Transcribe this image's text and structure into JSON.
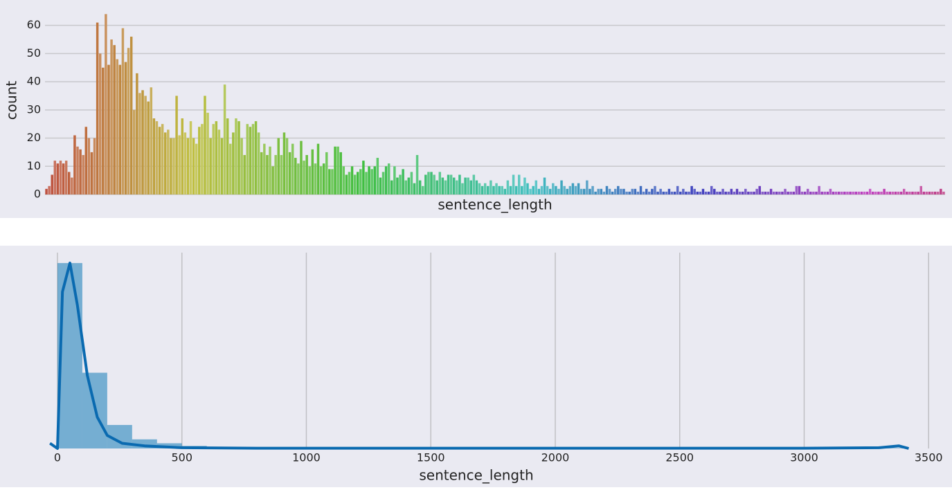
{
  "chart_data": [
    {
      "type": "bar",
      "xlabel": "sentence_length",
      "ylabel": "count",
      "palette": "husl",
      "ylim": [
        0,
        69
      ],
      "yticks": [
        0,
        10,
        20,
        30,
        40,
        50,
        60
      ],
      "grid": true,
      "values": [
        2,
        3,
        7,
        12,
        11,
        12,
        11,
        12,
        8,
        6,
        21,
        17,
        16,
        14,
        24,
        20,
        15,
        20,
        61,
        50,
        45,
        64,
        46,
        55,
        53,
        48,
        46,
        59,
        47,
        52,
        56,
        30,
        43,
        36,
        37,
        35,
        33,
        38,
        27,
        26,
        24,
        25,
        22,
        23,
        20,
        20,
        35,
        21,
        27,
        22,
        20,
        26,
        20,
        18,
        24,
        25,
        35,
        29,
        20,
        25,
        26,
        23,
        20,
        39,
        27,
        18,
        22,
        27,
        26,
        20,
        14,
        25,
        24,
        25,
        26,
        22,
        15,
        18,
        14,
        17,
        10,
        14,
        20,
        14,
        22,
        20,
        15,
        18,
        13,
        11,
        19,
        12,
        14,
        10,
        16,
        11,
        18,
        10,
        11,
        15,
        9,
        9,
        17,
        17,
        15,
        10,
        7,
        8,
        10,
        7,
        8,
        9,
        12,
        8,
        10,
        9,
        10,
        13,
        6,
        8,
        10,
        11,
        5,
        10,
        6,
        7,
        9,
        5,
        6,
        8,
        4,
        14,
        5,
        3,
        7,
        8,
        8,
        7,
        5,
        8,
        6,
        5,
        7,
        7,
        6,
        5,
        7,
        4,
        6,
        6,
        5,
        7,
        5,
        4,
        3,
        4,
        3,
        5,
        3,
        4,
        3,
        3,
        2,
        5,
        3,
        7,
        3,
        7,
        3,
        6,
        4,
        2,
        3,
        5,
        2,
        3,
        6,
        3,
        2,
        4,
        3,
        2,
        5,
        3,
        2,
        3,
        4,
        3,
        4,
        2,
        2,
        5,
        2,
        3,
        1,
        2,
        2,
        1,
        3,
        2,
        1,
        2,
        3,
        2,
        2,
        1,
        1,
        2,
        2,
        1,
        3,
        1,
        2,
        1,
        2,
        3,
        1,
        2,
        1,
        1,
        2,
        1,
        1,
        3,
        1,
        2,
        1,
        1,
        3,
        2,
        1,
        1,
        2,
        1,
        1,
        3,
        2,
        1,
        1,
        2,
        1,
        1,
        2,
        1,
        2,
        1,
        1,
        2,
        1,
        1,
        1,
        2,
        3,
        1,
        1,
        1,
        2,
        1,
        1,
        1,
        1,
        2,
        1,
        1,
        1,
        3,
        3,
        1,
        1,
        2,
        1,
        1,
        1,
        3,
        1,
        1,
        1,
        2,
        1,
        1,
        1,
        1,
        1,
        1,
        1,
        1,
        1,
        1,
        1,
        1,
        1,
        2,
        1,
        1,
        1,
        1,
        2,
        1,
        1,
        1,
        1,
        1,
        1,
        2,
        1,
        1,
        1,
        1,
        1,
        3,
        1,
        1,
        1,
        1,
        1,
        1,
        2,
        1
      ]
    },
    {
      "type": "histogram",
      "xlabel": "sentence_length",
      "color": "#0072b2",
      "alpha": 0.5,
      "xlim": [
        -50,
        3580
      ],
      "xticks": [
        0,
        500,
        1000,
        1500,
        2000,
        2500,
        3000,
        3500
      ],
      "ylim": [
        0,
        0.0075
      ],
      "grid": true,
      "bins": [
        0,
        100,
        200,
        300,
        400,
        500,
        600,
        700,
        800,
        900,
        1000,
        1100,
        1200,
        1300,
        1400,
        1500,
        1600,
        1700,
        1800,
        1900,
        2000,
        2100,
        2200,
        2300,
        2400,
        2500,
        2600,
        2700,
        2800,
        2900,
        3000,
        3100,
        3200,
        3300,
        3400
      ],
      "values": [
        0.0071,
        0.0029,
        0.0009,
        0.00035,
        0.0002,
        0.0001,
        5e-05,
        4e-05,
        3e-05,
        2e-05,
        2e-05,
        1e-05,
        1e-05,
        1e-05,
        1e-05,
        1e-05,
        1e-05,
        1e-05,
        1e-05,
        1e-05,
        1e-05,
        1e-05,
        1e-05,
        1e-05,
        1e-05,
        1e-05,
        1e-05,
        1e-05,
        1e-05,
        1e-05,
        1e-05,
        1e-05,
        1e-05,
        2e-05
      ],
      "line": {
        "color": "#0a6ab0",
        "x": [
          -30,
          0,
          20,
          50,
          80,
          120,
          160,
          200,
          260,
          350,
          500,
          800,
          1500,
          3000,
          3300,
          3380,
          3420
        ],
        "y": [
          0.0002,
          0,
          0.006,
          0.0071,
          0.0055,
          0.0028,
          0.0012,
          0.0005,
          0.0002,
          0.0001,
          3e-05,
          1e-05,
          1e-05,
          1e-05,
          3e-05,
          0.0001,
          0
        ]
      }
    }
  ]
}
